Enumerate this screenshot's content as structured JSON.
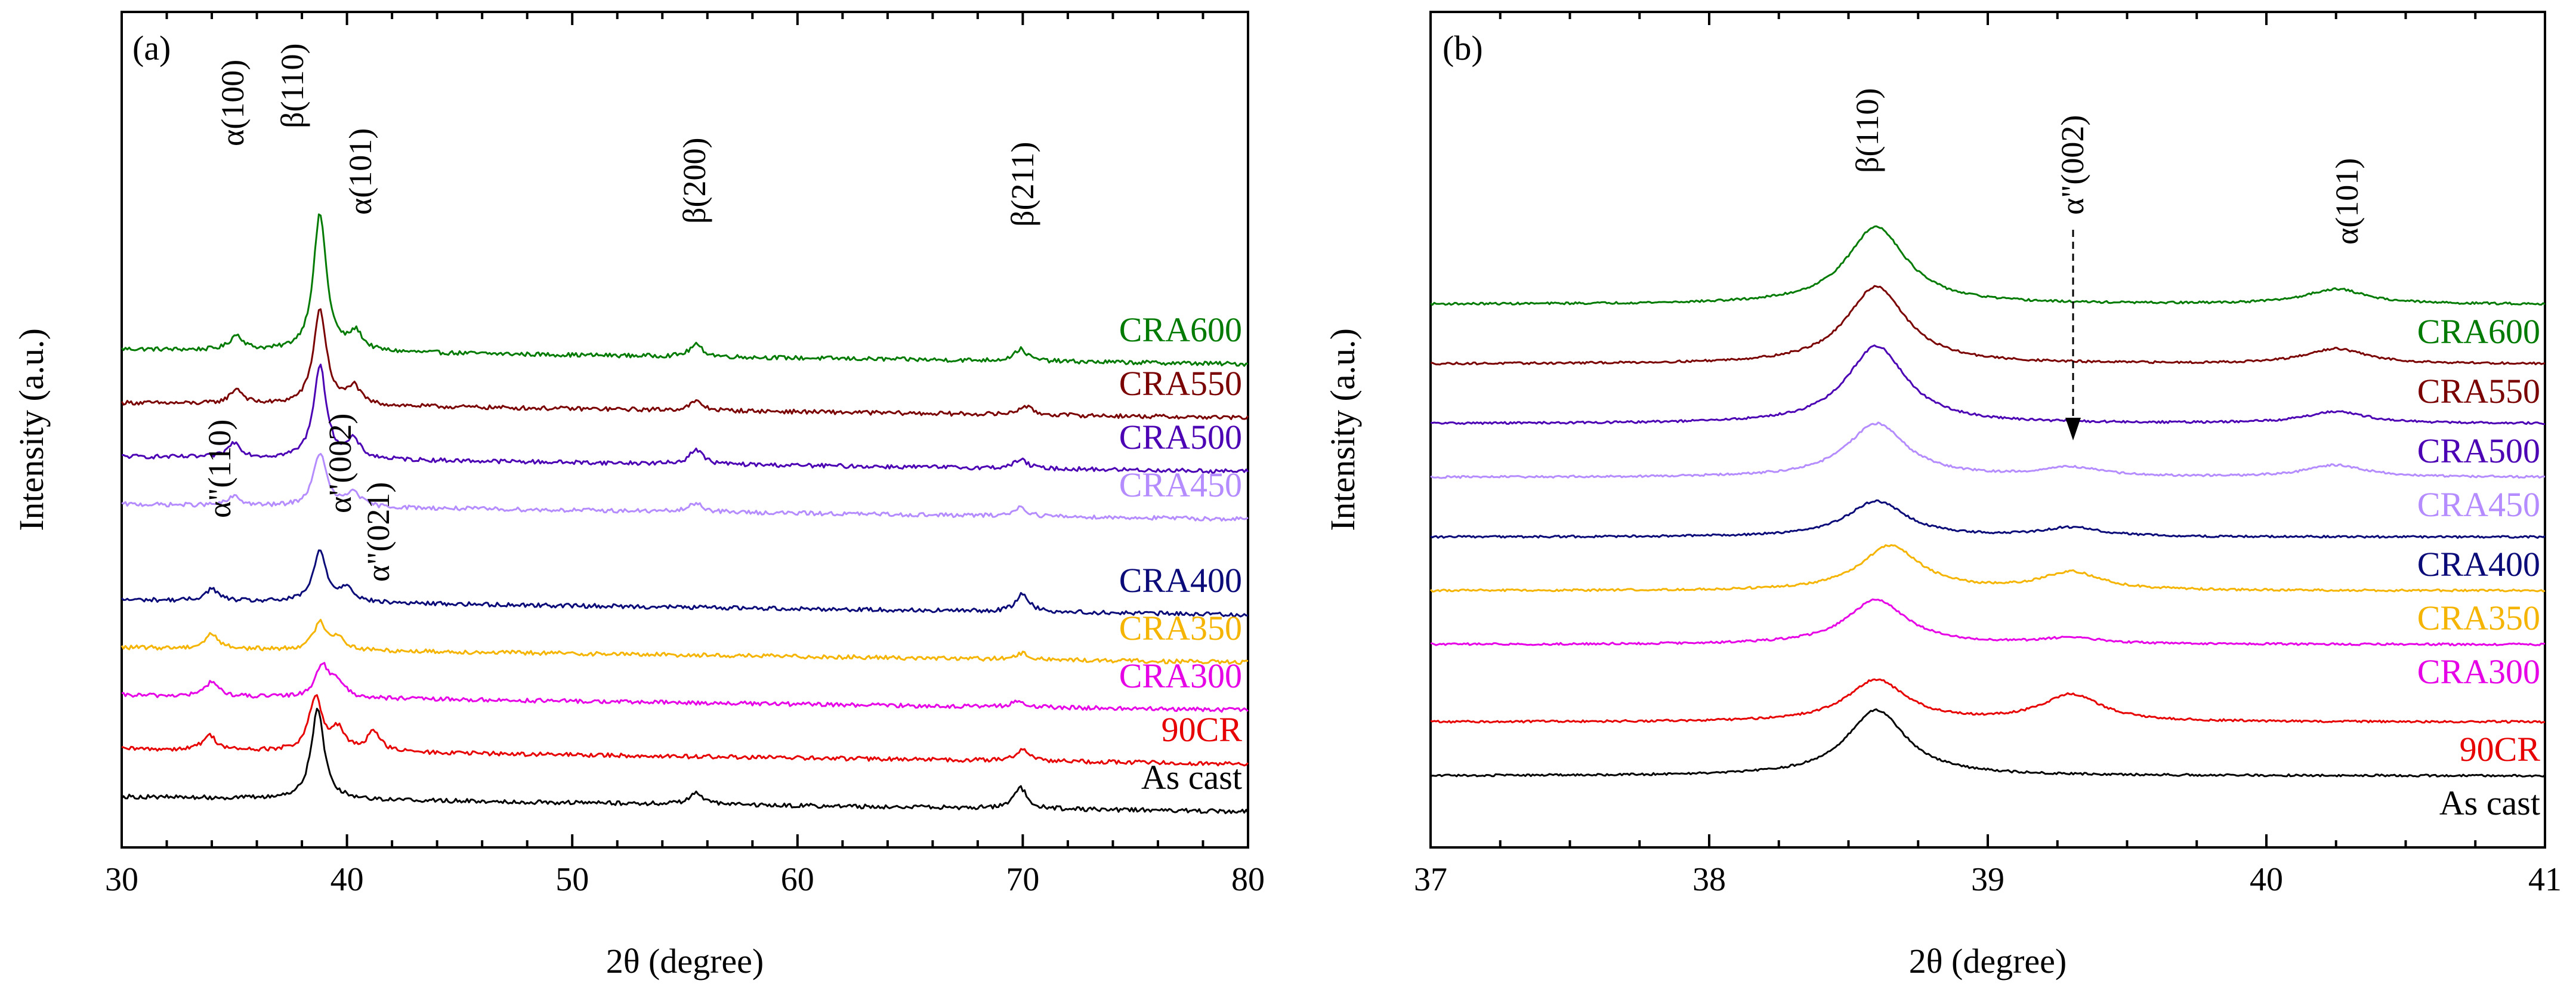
{
  "chart_data": [
    {
      "panel": "(a)",
      "type": "line",
      "xlabel": "2θ (degree)",
      "ylabel": "Intensity (a.u.)",
      "xlim": [
        30,
        80
      ],
      "x_ticks": [
        30,
        40,
        50,
        60,
        70,
        80
      ],
      "legend": "right-end labels",
      "series": [
        {
          "name": "CRA600",
          "color": "#007a00",
          "offset": 7.8,
          "peaks": [
            [
              35.1,
              0.25
            ],
            [
              38.8,
              2.3
            ],
            [
              40.4,
              0.3
            ],
            [
              55.5,
              0.2
            ],
            [
              69.9,
              0.2
            ]
          ]
        },
        {
          "name": "CRA550",
          "color": "#7a0000",
          "offset": 6.9,
          "peaks": [
            [
              35.1,
              0.25
            ],
            [
              38.8,
              1.6
            ],
            [
              40.3,
              0.3
            ],
            [
              55.5,
              0.15
            ],
            [
              70.1,
              0.15
            ]
          ]
        },
        {
          "name": "CRA500",
          "color": "#4b00b4",
          "offset": 6.0,
          "peaks": [
            [
              35.0,
              0.25
            ],
            [
              38.8,
              1.55
            ],
            [
              40.3,
              0.3
            ],
            [
              55.5,
              0.25
            ],
            [
              69.9,
              0.15
            ]
          ]
        },
        {
          "name": "CRA450",
          "color": "#b48cff",
          "offset": 5.2,
          "peaks": [
            [
              35.0,
              0.15
            ],
            [
              38.8,
              0.9
            ],
            [
              40.3,
              0.25
            ],
            [
              55.5,
              0.15
            ],
            [
              69.9,
              0.15
            ]
          ]
        },
        {
          "name": "CRA400",
          "color": "#0a0a78",
          "offset": 3.6,
          "peaks": [
            [
              34.0,
              0.2
            ],
            [
              38.8,
              0.85
            ],
            [
              40.0,
              0.25
            ],
            [
              70.0,
              0.3
            ]
          ]
        },
        {
          "name": "CRA350",
          "color": "#f5b400",
          "offset": 2.8,
          "peaks": [
            [
              34.0,
              0.25
            ],
            [
              38.8,
              0.45
            ],
            [
              39.6,
              0.2
            ],
            [
              70.0,
              0.1
            ]
          ]
        },
        {
          "name": "CRA300",
          "color": "#e600e6",
          "offset": 2.0,
          "peaks": [
            [
              34.0,
              0.25
            ],
            [
              38.9,
              0.55
            ],
            [
              39.6,
              0.25
            ],
            [
              69.8,
              0.1
            ]
          ]
        },
        {
          "name": "90CR",
          "color": "#e60000",
          "offset": 1.1,
          "peaks": [
            [
              33.9,
              0.25
            ],
            [
              38.6,
              0.9
            ],
            [
              39.6,
              0.35
            ],
            [
              41.2,
              0.35
            ],
            [
              70.0,
              0.2
            ]
          ]
        },
        {
          "name": "As cast",
          "color": "#000000",
          "offset": 0.3,
          "peaks": [
            [
              38.7,
              1.5
            ],
            [
              55.5,
              0.2
            ],
            [
              69.9,
              0.35
            ]
          ]
        }
      ],
      "annotations": [
        {
          "text": "α(100)",
          "x": 35.1
        },
        {
          "text": "β(110)",
          "x": 38.6
        },
        {
          "text": "α(101)",
          "x": 40.4
        },
        {
          "text": "β(200)",
          "x": 55.5
        },
        {
          "text": "β(211)",
          "x": 69.9
        },
        {
          "text": "α\"(110)",
          "x": 34.0
        },
        {
          "text": "α\"(002)",
          "x": 39.3
        },
        {
          "text": "α\"(021)",
          "x": 41.0
        }
      ]
    },
    {
      "panel": "(b)",
      "type": "line",
      "xlabel": "2θ (degree)",
      "ylabel": "Intensity (a.u.)",
      "xlim": [
        37,
        41
      ],
      "x_ticks": [
        37,
        38,
        39,
        40,
        41
      ],
      "legend": "right-end labels",
      "series": [
        {
          "name": "CRA600",
          "color": "#007a00",
          "offset": 8.6,
          "peaks": [
            [
              38.6,
              1.3
            ],
            [
              40.25,
              0.25
            ]
          ]
        },
        {
          "name": "CRA550",
          "color": "#7a0000",
          "offset": 7.6,
          "peaks": [
            [
              38.6,
              1.3
            ],
            [
              40.25,
              0.25
            ]
          ]
        },
        {
          "name": "CRA500",
          "color": "#4b00b4",
          "offset": 6.6,
          "peaks": [
            [
              38.6,
              1.3
            ],
            [
              40.25,
              0.2
            ]
          ]
        },
        {
          "name": "CRA450",
          "color": "#b48cff",
          "offset": 5.7,
          "peaks": [
            [
              38.6,
              0.9
            ],
            [
              39.3,
              0.15
            ],
            [
              40.25,
              0.2
            ]
          ]
        },
        {
          "name": "CRA400",
          "color": "#0a0a78",
          "offset": 4.7,
          "peaks": [
            [
              38.6,
              0.6
            ],
            [
              39.3,
              0.15
            ]
          ]
        },
        {
          "name": "CRA350",
          "color": "#f5b400",
          "offset": 3.8,
          "peaks": [
            [
              38.65,
              0.75
            ],
            [
              39.3,
              0.3
            ]
          ]
        },
        {
          "name": "CRA300",
          "color": "#e600e6",
          "offset": 2.9,
          "peaks": [
            [
              38.6,
              0.75
            ],
            [
              39.3,
              0.1
            ]
          ]
        },
        {
          "name": "90CR",
          "color": "#e60000",
          "offset": 1.6,
          "peaks": [
            [
              38.6,
              0.7
            ],
            [
              39.3,
              0.45
            ]
          ]
        },
        {
          "name": "As cast",
          "color": "#000000",
          "offset": 0.7,
          "peaks": [
            [
              38.6,
              1.1
            ]
          ]
        }
      ],
      "annotations": [
        {
          "text": "β(110)",
          "x": 38.6
        },
        {
          "text": "α\"(002)",
          "x": 39.3
        },
        {
          "text": "α(101)",
          "x": 40.25
        }
      ]
    }
  ]
}
